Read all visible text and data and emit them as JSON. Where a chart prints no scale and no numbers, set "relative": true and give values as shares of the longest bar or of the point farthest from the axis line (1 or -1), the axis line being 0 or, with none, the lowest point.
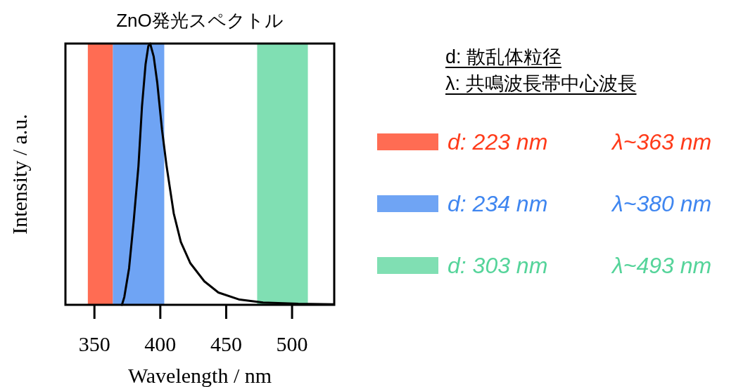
{
  "chart_data": {
    "type": "line",
    "title": "ZnO発光スペクトル",
    "xlabel": "Wavelength / nm",
    "ylabel": "Intensity / a.u.",
    "relative": true,
    "xlim": [
      328,
      532
    ],
    "xticks": [
      350,
      400,
      450,
      500
    ],
    "legend": "right",
    "grid": false,
    "series": [
      {
        "color": "#000000",
        "x": [
          370.9,
          372.7,
          376.3,
          379.8,
          383.4,
          386.1,
          388.8,
          390.9,
          392.3,
          395,
          397.7,
          401.3,
          404.8,
          410.2,
          415.6,
          422.7,
          433.4,
          444.1,
          460.2,
          478,
          504.8,
          531.6
        ],
        "values": [
          0,
          0.03,
          0.14,
          0.32,
          0.53,
          0.76,
          0.92,
          0.99,
          1,
          0.95,
          0.85,
          0.67,
          0.53,
          0.35,
          0.24,
          0.16,
          0.09,
          0.047,
          0.02,
          0.009,
          0.004,
          0.002
        ]
      }
    ],
    "bands": [
      {
        "axis": "x",
        "from": 345,
        "to": 364,
        "label": "d: 223 nm",
        "color": "#ff3b1a"
      },
      {
        "axis": "x",
        "from": 364,
        "to": 403,
        "label": "d: 234 nm",
        "color": "#3f86f0"
      },
      {
        "axis": "x",
        "from": 473.5,
        "to": 512,
        "label": "d: 303 nm",
        "color": "#55d49a"
      }
    ],
    "annotations": [
      "d: 散乱体粒径",
      "λ: 共鳴波長帯中心波長",
      "λ~363 nm",
      "λ~380 nm",
      "λ~493 nm"
    ]
  }
}
